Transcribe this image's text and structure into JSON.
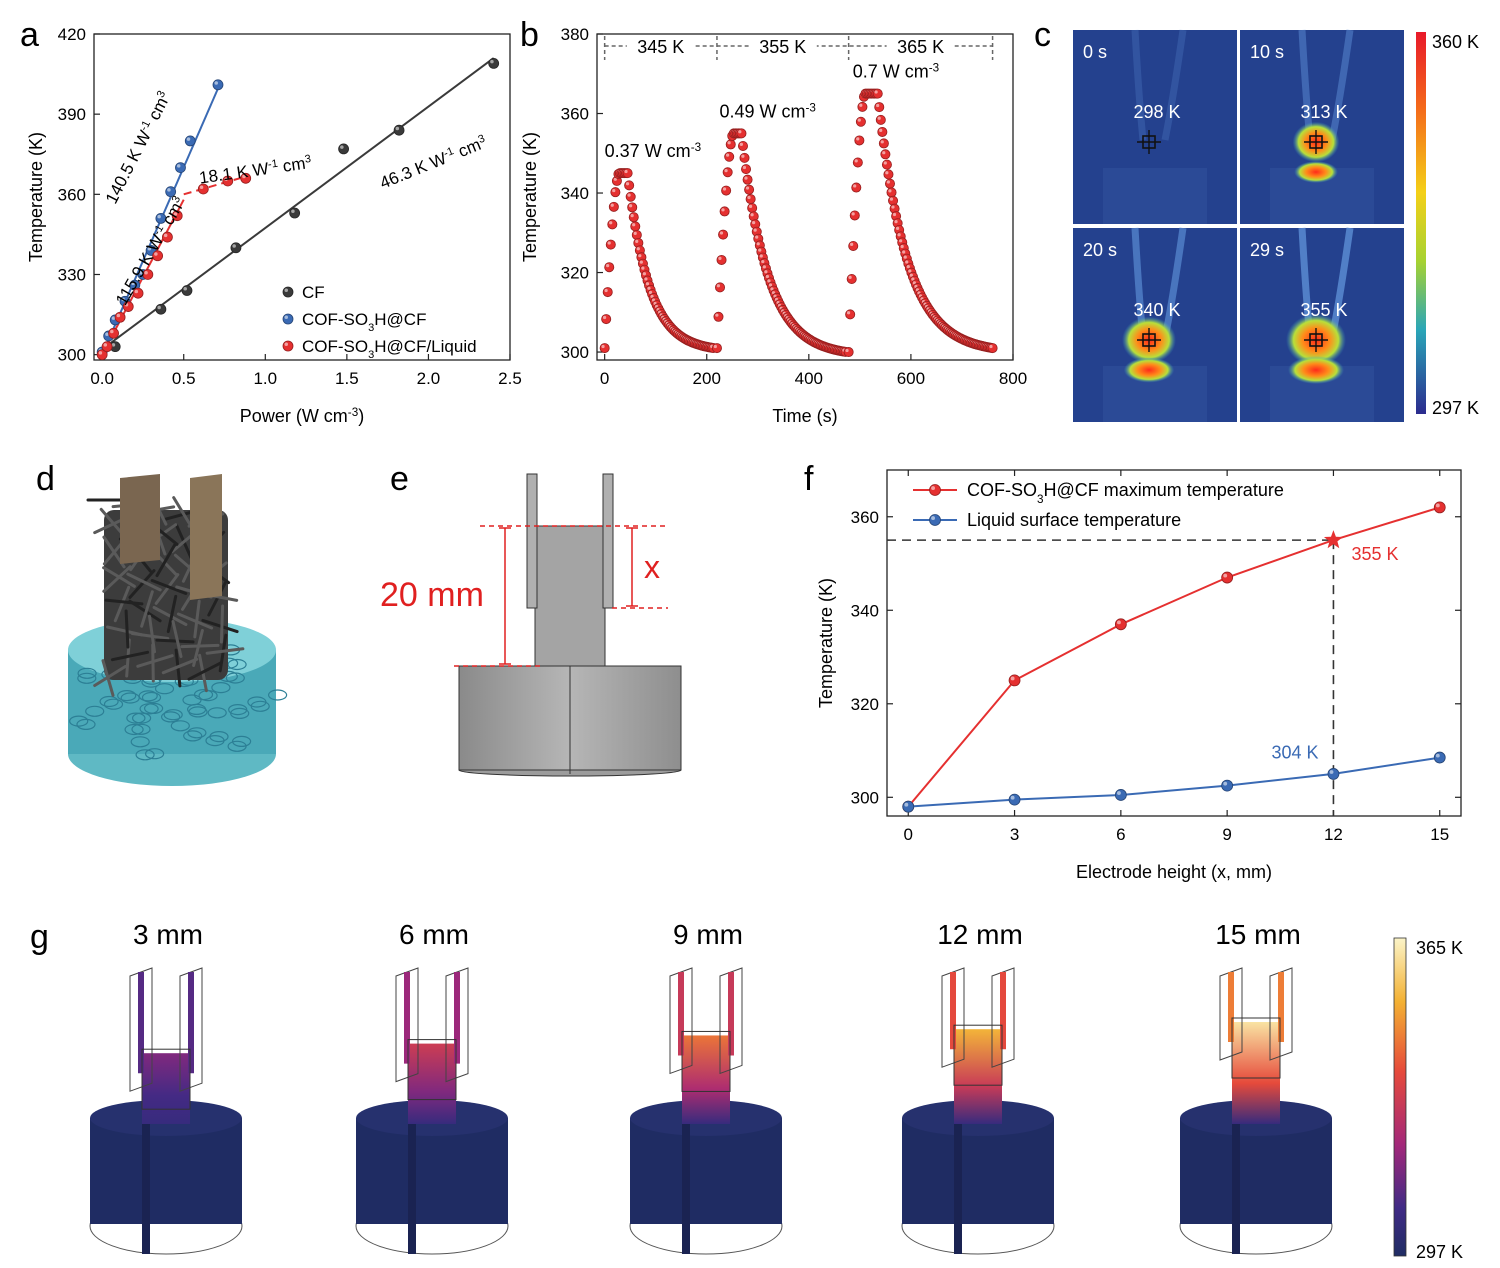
{
  "panel_labels": [
    "a",
    "b",
    "c",
    "d",
    "e",
    "f",
    "g"
  ],
  "chart_data": [
    {
      "panel": "a",
      "type": "scatter",
      "xlabel": "Power (W cm",
      "xlabel_sup": "-3",
      "xlabel_end": ")",
      "ylabel": "Temperature (K)",
      "xlim": [
        -0.05,
        2.5
      ],
      "ylim": [
        298,
        420
      ],
      "xticks": [
        "0.0",
        "0.5",
        "1.0",
        "1.5",
        "2.0",
        "2.5"
      ],
      "yticks": [
        "300",
        "330",
        "360",
        "390",
        "420"
      ],
      "legend_position": "bottom-right",
      "series": [
        {
          "name": "CF",
          "color": "#3a3a3a",
          "x": [
            0.08,
            0.36,
            0.52,
            0.82,
            1.18,
            1.48,
            1.82,
            2.4
          ],
          "y": [
            303,
            317,
            324,
            340,
            353,
            377,
            384,
            409
          ],
          "fit": {
            "x": [
              0.0,
              2.4
            ],
            "y": [
              302,
              411
            ]
          }
        },
        {
          "name": "COF-SO",
          "sub": "3",
          "tail": "H@CF",
          "color": "#3a6ab4",
          "x": [
            0.0,
            0.04,
            0.08,
            0.14,
            0.2,
            0.25,
            0.3,
            0.36,
            0.42,
            0.48,
            0.54,
            0.71
          ],
          "y": [
            301,
            307,
            313,
            320,
            326,
            330,
            339,
            351,
            361,
            370,
            380,
            401
          ],
          "fit": {
            "x": [
              0.0,
              0.72
            ],
            "y": [
              300,
              401
            ]
          }
        },
        {
          "name": "COF-SO",
          "sub": "3",
          "tail": "H@CF/Liquid",
          "color": "#e53030",
          "x": [
            0.0,
            0.03,
            0.07,
            0.11,
            0.16,
            0.22,
            0.28,
            0.34,
            0.4,
            0.46,
            0.62,
            0.77,
            0.88
          ],
          "y": [
            300,
            303,
            308,
            314,
            318,
            323,
            330,
            337,
            344,
            352,
            362,
            365,
            366
          ],
          "fit": {
            "x": [
              0.0,
              0.5
            ],
            "y": [
              300,
              358
            ]
          },
          "fit2": {
            "x": [
              0.5,
              0.9
            ],
            "y": [
              360,
              367
            ]
          }
        }
      ],
      "annotations": [
        {
          "text": "140.5 K W",
          "sup": "-1",
          "tail": " cm",
          "sup2": "3",
          "x": 0.08,
          "y": 356,
          "angle": -63
        },
        {
          "text": "18.1 K W",
          "sup": "-1",
          "tail": " cm",
          "sup2": "3",
          "x": 0.6,
          "y": 364,
          "angle": -8
        },
        {
          "text": "115.9 K W",
          "sup": "-1",
          "tail": " cm",
          "sup2": "3",
          "x": 0.14,
          "y": 318,
          "angle": -60
        },
        {
          "text": "46.3 K W",
          "sup": "-1",
          "tail": " cm",
          "sup2": "3",
          "x": 1.72,
          "y": 362,
          "angle": -22
        }
      ]
    },
    {
      "panel": "b",
      "type": "scatter",
      "xlabel": "Time (s)",
      "ylabel": "Temperature (K)",
      "xlim": [
        -15,
        800
      ],
      "ylim": [
        298,
        380
      ],
      "xticks": [
        "0",
        "200",
        "400",
        "600",
        "800"
      ],
      "yticks": [
        "300",
        "320",
        "340",
        "360",
        "380"
      ],
      "color": "#e53030",
      "segments": [
        {
          "t0": 0,
          "t_peak": 28,
          "t_hold": 45,
          "t_end": 214,
          "T0": 301,
          "Tmax": 345,
          "Tend": 301
        },
        {
          "t0": 220,
          "t_peak": 252,
          "t_hold": 268,
          "t_end": 474,
          "T0": 301,
          "Tmax": 355,
          "Tend": 300
        },
        {
          "t0": 478,
          "t_peak": 510,
          "t_hold": 535,
          "t_end": 760,
          "T0": 300,
          "Tmax": 365,
          "Tend": 301
        }
      ],
      "set_points": [
        "345 K",
        "355 K",
        "365 K"
      ],
      "dividers_x": [
        0,
        220,
        478,
        760
      ],
      "annotations": [
        {
          "text": "0.37 W cm",
          "sup": "-3",
          "x": 0,
          "y": 349
        },
        {
          "text": "0.49 W cm",
          "sup": "-3",
          "x": 225,
          "y": 359
        },
        {
          "text": "0.7 W cm",
          "sup": "-3",
          "x": 486,
          "y": 369
        }
      ]
    },
    {
      "panel": "c",
      "type": "heatmap",
      "frames": [
        {
          "time": "0 s",
          "temp": "298 K",
          "level": 0.0
        },
        {
          "time": "10 s",
          "temp": "313 K",
          "level": 0.45
        },
        {
          "time": "20 s",
          "temp": "340 K",
          "level": 0.75
        },
        {
          "time": "29 s",
          "temp": "355 K",
          "level": 1.0
        }
      ],
      "colorbar": {
        "max": "360 K",
        "min": "297 K"
      }
    },
    {
      "panel": "f",
      "type": "line",
      "xlabel": "Electrode height (x, mm)",
      "ylabel": "Temperature (K)",
      "xlim": [
        -0.6,
        15.6
      ],
      "ylim": [
        296,
        370
      ],
      "xticks": [
        "0",
        "3",
        "6",
        "9",
        "12",
        "15"
      ],
      "yticks": [
        "300",
        "320",
        "340",
        "360"
      ],
      "x": [
        0,
        3,
        6,
        9,
        12,
        15
      ],
      "legend_position": "top-left",
      "series": [
        {
          "name": "COF-SO",
          "sub": "3",
          "tail": "H@CF maximum temperature",
          "color": "#e53030",
          "values": [
            298,
            325,
            337,
            347,
            355,
            362
          ]
        },
        {
          "name": "Liquid surface temperature",
          "color": "#3a6ab4",
          "values": [
            298,
            299.5,
            300.5,
            302.5,
            305,
            308.5
          ]
        }
      ],
      "marker_point": {
        "x": 12,
        "y": 355,
        "label": "355 K"
      },
      "liquid_label": "304 K"
    },
    {
      "panel": "g",
      "type": "heatmap",
      "heights": [
        "3 mm",
        "6 mm",
        "9 mm",
        "12 mm",
        "15 mm"
      ],
      "levels": [
        0.35,
        0.55,
        0.72,
        0.85,
        1.0
      ],
      "colorbar": {
        "max": "365 K",
        "min": "297 K"
      }
    }
  ],
  "panel_e": {
    "height_label": "20 mm",
    "x_label": "x"
  }
}
